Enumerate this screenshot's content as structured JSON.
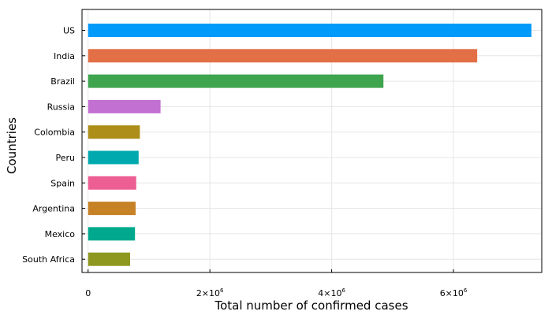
{
  "chart_data": {
    "type": "bar",
    "orientation": "horizontal",
    "xlabel": "Total number of confirmed cases",
    "ylabel": "Countries",
    "xlim": [
      -100000,
      7450000
    ],
    "categories": [
      "US",
      "India",
      "Brazil",
      "Russia",
      "Colombia",
      "Peru",
      "Spain",
      "Argentina",
      "Mexico",
      "South Africa"
    ],
    "values": [
      7280000,
      6390000,
      4850000,
      1190000,
      850000,
      830000,
      790000,
      780000,
      770000,
      690000
    ],
    "colors": [
      "#009AFA",
      "#E26F46",
      "#3EA44E",
      "#C271D2",
      "#AC8E18",
      "#00A9AD",
      "#ED5E93",
      "#C68225",
      "#00A98E",
      "#8E971E"
    ],
    "x_ticks": [
      {
        "value": 0,
        "base": "0",
        "exp": ""
      },
      {
        "value": 2000000,
        "base": "2×10",
        "exp": "6"
      },
      {
        "value": 4000000,
        "base": "4×10",
        "exp": "6"
      },
      {
        "value": 6000000,
        "base": "6×10",
        "exp": "6"
      }
    ],
    "grid": true,
    "legend": "none"
  }
}
